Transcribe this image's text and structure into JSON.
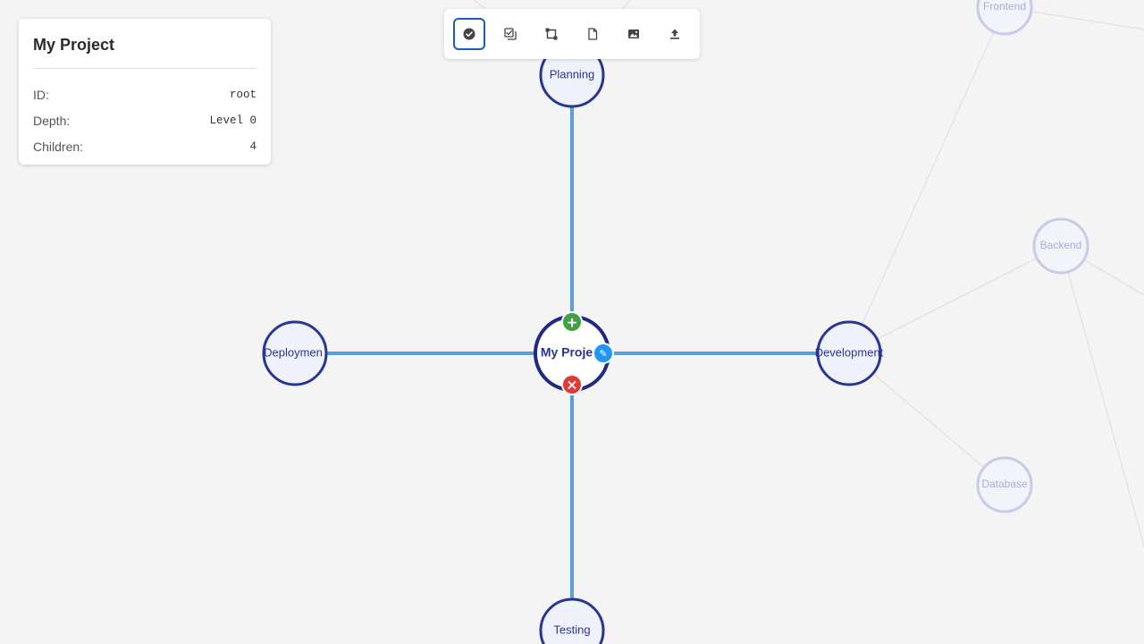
{
  "info_panel": {
    "title": "My Project",
    "rows": [
      {
        "label": "ID:",
        "value": "root"
      },
      {
        "label": "Depth:",
        "value": "Level 0"
      },
      {
        "label": "Children:",
        "value": "4"
      }
    ]
  },
  "toolbar": {
    "tools": [
      {
        "icon": "check-circle-icon",
        "active": true
      },
      {
        "icon": "multi-select-icon",
        "active": false
      },
      {
        "icon": "layout-icon",
        "active": false
      },
      {
        "icon": "file-icon",
        "active": false
      },
      {
        "icon": "image-icon",
        "active": false
      },
      {
        "icon": "upload-icon",
        "active": false
      }
    ]
  },
  "diagram": {
    "root": {
      "label": "My Project",
      "display": "My Proje",
      "selected": true
    },
    "children": [
      {
        "label": "Planning"
      },
      {
        "label": "Development"
      },
      {
        "label": "Testing"
      },
      {
        "label": "Deployment",
        "display": "Deploymen"
      }
    ],
    "faded_nodes": [
      {
        "label": "Frontend"
      },
      {
        "label": "Backend"
      },
      {
        "label": "Database"
      }
    ],
    "node_actions": {
      "add": "+",
      "edit": "✎",
      "delete": "×"
    },
    "colors": {
      "edge": "#5b9ee0",
      "faded_edge": "#e4e4e4",
      "node_border": "#283593",
      "node_fill": "#f0f2fb",
      "faded_border": "#c8cbe8",
      "add": "#43a047",
      "edit": "#2196f3",
      "delete": "#e53935"
    }
  }
}
